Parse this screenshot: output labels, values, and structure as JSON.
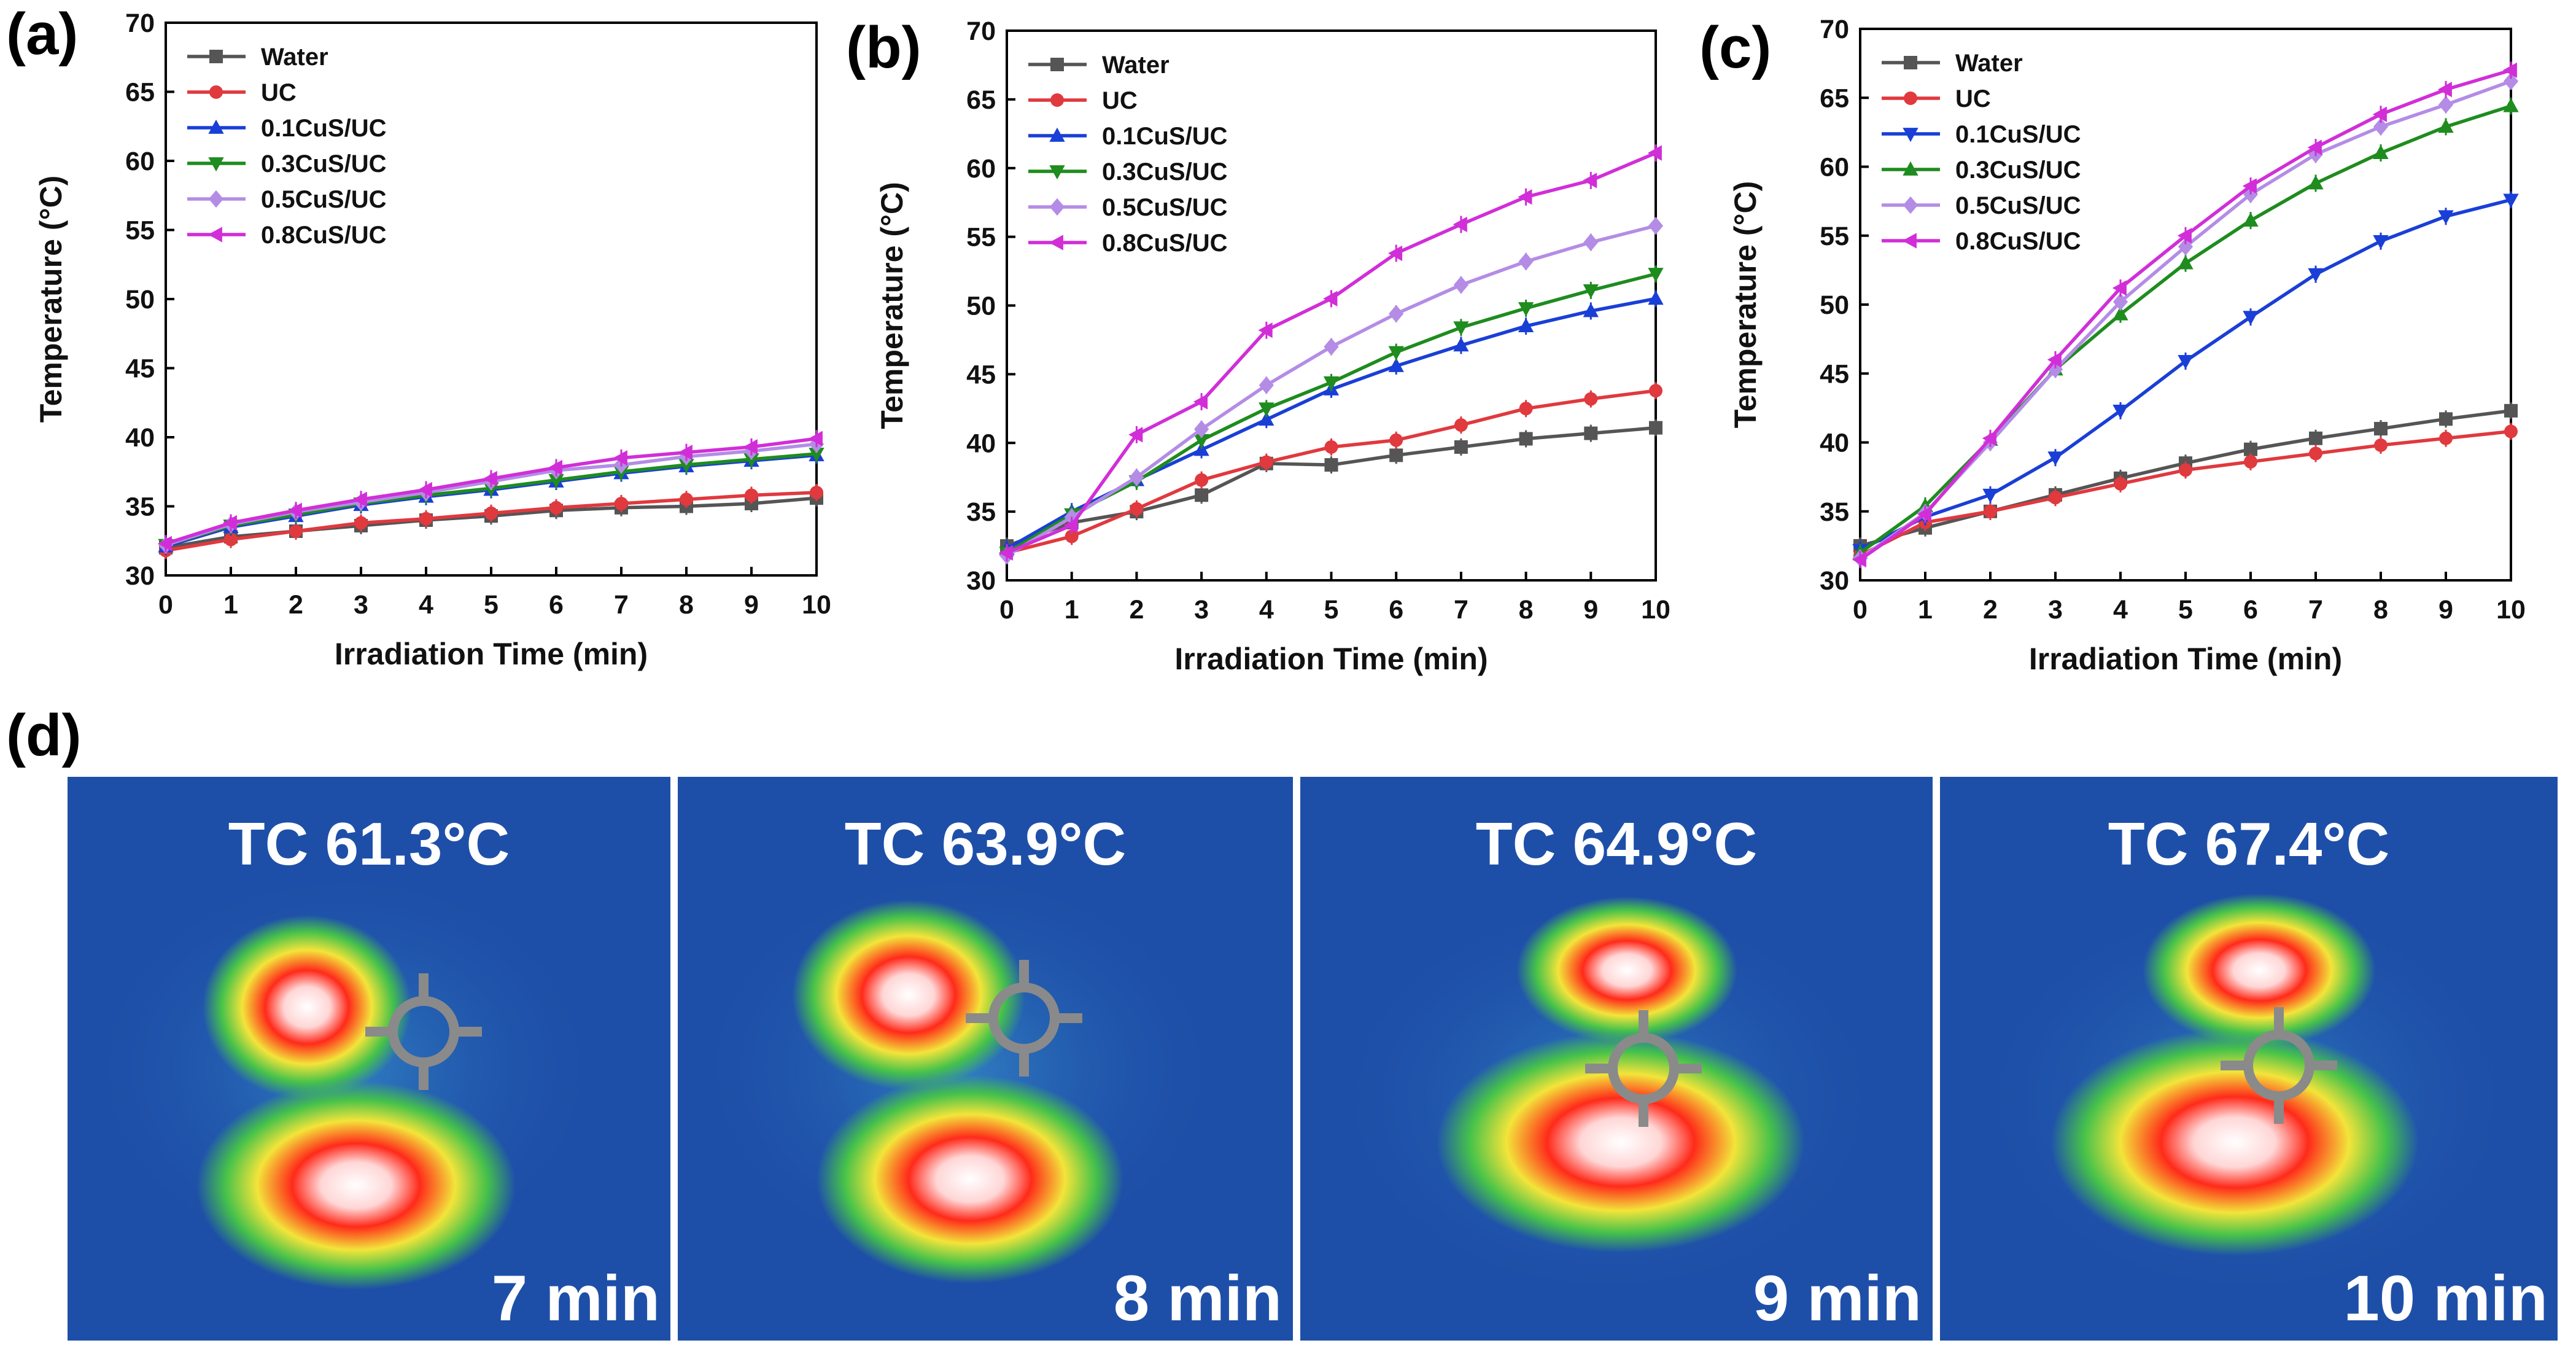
{
  "chart_data": [
    {
      "panel": "(a)",
      "type": "line",
      "xlabel": "Irradiation Time (min)",
      "ylabel": "Temperature (°C)",
      "xlim": [
        0,
        10
      ],
      "ylim": [
        30,
        70
      ],
      "x_ticks": [
        "0",
        "1",
        "2",
        "3",
        "4",
        "5",
        "6",
        "7",
        "8",
        "9",
        "10"
      ],
      "y_ticks": [
        "30",
        "35",
        "40",
        "45",
        "50",
        "55",
        "60",
        "65",
        "70"
      ],
      "x": [
        0,
        1,
        2,
        3,
        4,
        5,
        6,
        7,
        8,
        9,
        10
      ],
      "legend_position": "top-left",
      "grid": false,
      "series": [
        {
          "name": "Water",
          "color": "#555555",
          "marker": "square",
          "values": [
            32.0,
            32.8,
            33.2,
            33.6,
            34.0,
            34.3,
            34.7,
            34.9,
            35.0,
            35.2,
            35.6
          ]
        },
        {
          "name": "UC",
          "color": "#e0393e",
          "marker": "circle",
          "values": [
            31.8,
            32.6,
            33.2,
            33.8,
            34.1,
            34.5,
            34.9,
            35.2,
            35.5,
            35.8,
            36.0
          ]
        },
        {
          "name": "0.1CuS/UC",
          "color": "#1a3fd6",
          "marker": "triangle-up",
          "values": [
            32.1,
            33.5,
            34.3,
            35.1,
            35.7,
            36.2,
            36.8,
            37.4,
            37.9,
            38.3,
            38.7
          ]
        },
        {
          "name": "0.3CuS/UC",
          "color": "#1e8c1e",
          "marker": "triangle-down",
          "values": [
            32.2,
            33.6,
            34.4,
            35.2,
            35.8,
            36.3,
            36.9,
            37.5,
            38.0,
            38.4,
            38.8
          ]
        },
        {
          "name": "0.5CuS/UC",
          "color": "#b48ce6",
          "marker": "diamond",
          "values": [
            32.2,
            33.7,
            34.6,
            35.3,
            36.0,
            36.8,
            37.6,
            38.0,
            38.6,
            39.0,
            39.5
          ]
        },
        {
          "name": "0.8CuS/UC",
          "color": "#d12ed8",
          "marker": "triangle-left",
          "values": [
            32.3,
            33.8,
            34.7,
            35.5,
            36.2,
            37.0,
            37.8,
            38.5,
            38.9,
            39.3,
            39.9
          ]
        }
      ]
    },
    {
      "panel": "(b)",
      "type": "line",
      "xlabel": "Irradiation Time (min)",
      "ylabel": "Temperature (°C)",
      "xlim": [
        0,
        10
      ],
      "ylim": [
        30,
        70
      ],
      "x_ticks": [
        "0",
        "1",
        "2",
        "3",
        "4",
        "5",
        "6",
        "7",
        "8",
        "9",
        "10"
      ],
      "y_ticks": [
        "30",
        "35",
        "40",
        "45",
        "50",
        "55",
        "60",
        "65",
        "70"
      ],
      "x": [
        0,
        1,
        2,
        3,
        4,
        5,
        6,
        7,
        8,
        9,
        10
      ],
      "legend_position": "top-left",
      "grid": false,
      "series": [
        {
          "name": "Water",
          "color": "#555555",
          "marker": "square",
          "values": [
            32.5,
            34.2,
            35.0,
            36.2,
            38.5,
            38.4,
            39.1,
            39.7,
            40.3,
            40.7,
            41.1
          ]
        },
        {
          "name": "UC",
          "color": "#e0393e",
          "marker": "circle",
          "values": [
            32.0,
            33.2,
            35.2,
            37.3,
            38.6,
            39.7,
            40.2,
            41.3,
            42.5,
            43.2,
            43.8
          ]
        },
        {
          "name": "0.1CuS/UC",
          "color": "#1a3fd6",
          "marker": "triangle-up",
          "values": [
            32.3,
            35.0,
            37.3,
            39.5,
            41.7,
            43.9,
            45.6,
            47.1,
            48.5,
            49.6,
            50.5
          ]
        },
        {
          "name": "0.3CuS/UC",
          "color": "#1e8c1e",
          "marker": "triangle-down",
          "values": [
            32.0,
            34.8,
            37.2,
            40.2,
            42.5,
            44.4,
            46.6,
            48.4,
            49.8,
            51.1,
            52.3
          ]
        },
        {
          "name": "0.5CuS/UC",
          "color": "#b48ce6",
          "marker": "diamond",
          "values": [
            31.8,
            34.6,
            37.5,
            41.0,
            44.2,
            47.0,
            49.4,
            51.5,
            53.2,
            54.6,
            55.8
          ]
        },
        {
          "name": "0.8CuS/UC",
          "color": "#d12ed8",
          "marker": "triangle-left",
          "values": [
            32.0,
            34.0,
            40.6,
            43.0,
            48.2,
            50.5,
            53.8,
            55.9,
            57.9,
            59.1,
            61.1
          ]
        }
      ]
    },
    {
      "panel": "(c)",
      "type": "line",
      "xlabel": "Irradiation Time (min)",
      "ylabel": "Temperature (°C)",
      "xlim": [
        0,
        10
      ],
      "ylim": [
        30,
        70
      ],
      "x_ticks": [
        "0",
        "1",
        "2",
        "3",
        "4",
        "5",
        "6",
        "7",
        "8",
        "9",
        "10"
      ],
      "y_ticks": [
        "30",
        "35",
        "40",
        "45",
        "50",
        "55",
        "60",
        "65",
        "70"
      ],
      "x": [
        0,
        1,
        2,
        3,
        4,
        5,
        6,
        7,
        8,
        9,
        10
      ],
      "legend_position": "top-left",
      "grid": false,
      "series": [
        {
          "name": "Water",
          "color": "#555555",
          "marker": "square",
          "values": [
            32.5,
            33.8,
            35.0,
            36.2,
            37.4,
            38.5,
            39.5,
            40.3,
            41.0,
            41.7,
            42.3
          ]
        },
        {
          "name": "UC",
          "color": "#e0393e",
          "marker": "circle",
          "values": [
            31.8,
            34.2,
            35.0,
            36.0,
            37.0,
            38.0,
            38.6,
            39.2,
            39.8,
            40.3,
            40.8
          ]
        },
        {
          "name": "0.1CuS/UC",
          "color": "#1a3fd6",
          "marker": "triangle-down",
          "values": [
            32.2,
            34.6,
            36.2,
            38.9,
            42.3,
            45.9,
            49.1,
            52.2,
            54.6,
            56.4,
            57.6
          ]
        },
        {
          "name": "0.3CuS/UC",
          "color": "#1e8c1e",
          "marker": "triangle-up",
          "values": [
            32.0,
            35.4,
            40.2,
            45.3,
            49.3,
            53.0,
            56.1,
            58.8,
            61.0,
            62.9,
            64.4
          ]
        },
        {
          "name": "0.5CuS/UC",
          "color": "#b48ce6",
          "marker": "diamond",
          "values": [
            31.6,
            34.9,
            40.0,
            45.3,
            50.2,
            54.2,
            58.0,
            60.9,
            62.9,
            64.5,
            66.2
          ]
        },
        {
          "name": "0.8CuS/UC",
          "color": "#d12ed8",
          "marker": "triangle-left",
          "values": [
            31.5,
            34.8,
            40.3,
            46.0,
            51.2,
            55.0,
            58.6,
            61.4,
            63.8,
            65.6,
            67.0
          ]
        }
      ]
    }
  ],
  "thermal_panel": {
    "letter": "(d)",
    "frames": [
      {
        "tc_label": "TC 61.3°C",
        "time_label": "7 min"
      },
      {
        "tc_label": "TC 63.9°C",
        "time_label": "8 min"
      },
      {
        "tc_label": "TC 64.9°C",
        "time_label": "9 min"
      },
      {
        "tc_label": "TC 67.4°C",
        "time_label": "10 min"
      }
    ]
  },
  "colors": {
    "thermal_background": "#1e4fa8",
    "thermal_hot": "#ff2a1a",
    "thermal_warm": "#f3e43a",
    "thermal_mid": "#46c24a"
  }
}
